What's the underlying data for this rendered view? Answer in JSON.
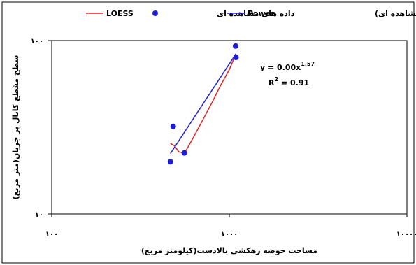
{
  "chart_data": {
    "type": "scatter",
    "x_scale": "log",
    "y_scale": "log",
    "xlim": [
      100,
      10000
    ],
    "ylim": [
      10,
      100
    ],
    "grid": false,
    "legend_position": "top",
    "xlabel": "مساحت حوضه زهکشی بالادست(کیلومتر مربع)",
    "ylabel": "سطح مقطع کانال پر جریان(متر مربع)",
    "x_tick_labels": [
      "۱۰۰",
      "۱۰۰۰",
      "۱۰۰۰۰"
    ],
    "y_tick_labels": [
      "۱۰",
      "۱۰۰"
    ],
    "legend": {
      "loess": "LOESS",
      "observed": "داده های مشاهده ای",
      "power_prefix": "(داده های مشاهده ای)",
      "power_suffix": "Power"
    },
    "annotation": {
      "equation_base": "y = 0.00x",
      "equation_exponent": "1.57",
      "r2_base": "R",
      "r2_exponent": "2",
      "r2_value": " = 0.91"
    },
    "series": [
      {
        "name": "داده های مشاهده ای",
        "kind": "scatter",
        "color": "#1f1fd6",
        "points": [
          {
            "x": 466,
            "y": 20.0
          },
          {
            "x": 483,
            "y": 32.0
          },
          {
            "x": 558,
            "y": 22.5
          },
          {
            "x": 1085,
            "y": 93.0
          },
          {
            "x": 1090,
            "y": 80.0
          }
        ]
      },
      {
        "name": "LOESS",
        "kind": "line",
        "color": "#e32222",
        "points": [
          {
            "x": 466,
            "y": 25.5
          },
          {
            "x": 490,
            "y": 24.8
          },
          {
            "x": 520,
            "y": 22.8
          },
          {
            "x": 545,
            "y": 22.6
          },
          {
            "x": 570,
            "y": 23.2
          },
          {
            "x": 620,
            "y": 27.0
          },
          {
            "x": 700,
            "y": 34.0
          },
          {
            "x": 800,
            "y": 44.0
          },
          {
            "x": 900,
            "y": 56.0
          },
          {
            "x": 1000,
            "y": 68.0
          },
          {
            "x": 1090,
            "y": 84.0
          }
        ]
      },
      {
        "name": "(داده های مشاهده ای) Power",
        "kind": "line",
        "color": "#1f1fd6",
        "points": [
          {
            "x": 466,
            "y": 22.3
          },
          {
            "x": 1090,
            "y": 84.0
          }
        ]
      }
    ]
  }
}
